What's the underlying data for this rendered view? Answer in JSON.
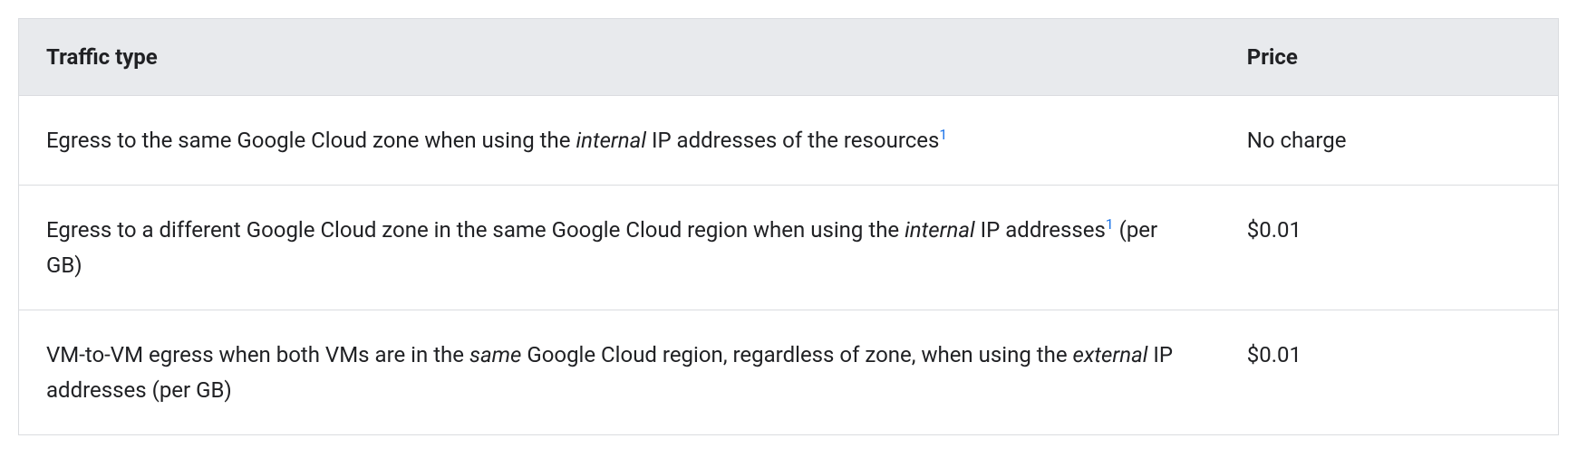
{
  "table": {
    "columns": [
      "Traffic type",
      "Price"
    ],
    "border_color": "#dadce0",
    "header_bg": "#e8eaed",
    "text_color": "#202124",
    "link_color": "#1a73e8",
    "font_size_pt": 18,
    "col_widths_pct": [
      78,
      22
    ],
    "rows": [
      {
        "traffic_pre": "Egress to the same Google Cloud zone when using the ",
        "traffic_em": "internal",
        "traffic_post": " IP addresses of the resources",
        "footnote": "1",
        "tail": "",
        "price": "No charge"
      },
      {
        "traffic_pre": "Egress to a different Google Cloud zone in the same Google Cloud region when using the ",
        "traffic_em": "internal",
        "traffic_post": " IP addresses",
        "footnote": "1",
        "tail": " (per GB)",
        "price": "$0.01"
      },
      {
        "traffic_pre": "VM-to-VM egress when both VMs are in the ",
        "traffic_em": "same",
        "traffic_post": " Google Cloud region, regardless of zone, when using the ",
        "traffic_em2": "external",
        "traffic_post2": " IP addresses (per GB)",
        "footnote": "",
        "tail": "",
        "price": "$0.01"
      }
    ]
  }
}
